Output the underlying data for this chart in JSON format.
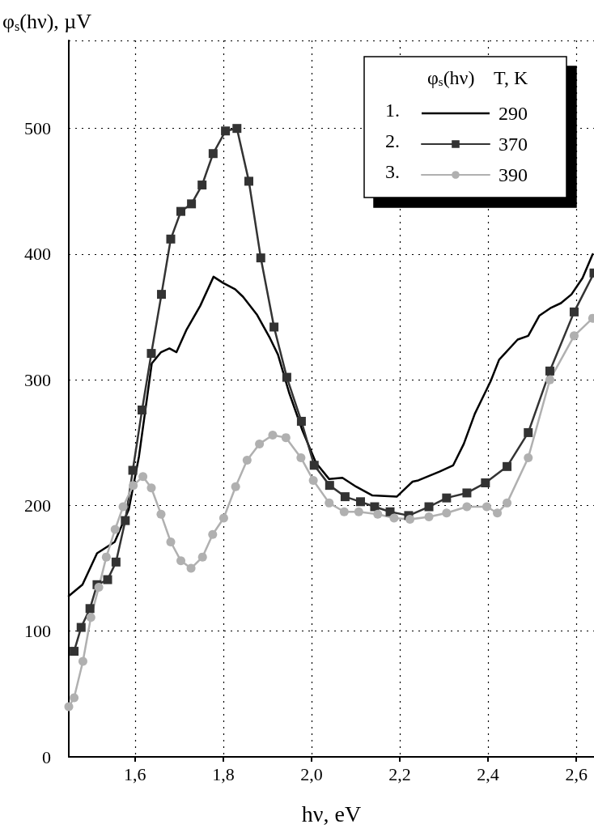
{
  "chart_data": {
    "type": "line",
    "xlabel": "hν, eV",
    "ylabel": "φ$_{s}$(hν), µV",
    "legend_title": "φ$_{s}$(hν)    T, K",
    "annotations": [
      "1.",
      "2.",
      "3."
    ],
    "xlim": [
      1.45,
      2.64
    ],
    "ylim": [
      0,
      570
    ],
    "xticks": [
      {
        "value": 1.6,
        "label": "1,6"
      },
      {
        "value": 1.8,
        "label": "1,8"
      },
      {
        "value": 2.0,
        "label": "2,0"
      },
      {
        "value": 2.2,
        "label": "2,2"
      },
      {
        "value": 2.4,
        "label": "2,4"
      },
      {
        "value": 2.6,
        "label": "2,6"
      }
    ],
    "yticks": [
      0,
      100,
      200,
      300,
      400,
      500
    ],
    "grid": true,
    "legend": "top right",
    "line_style": "solid",
    "series": [
      {
        "name": "290",
        "color": "#000000",
        "marker": "none",
        "x": [
          1.45,
          1.481,
          1.514,
          1.554,
          1.586,
          1.609,
          1.638,
          1.659,
          1.678,
          1.694,
          1.717,
          1.748,
          1.778,
          1.8,
          1.827,
          1.845,
          1.876,
          1.906,
          1.924,
          1.949,
          1.979,
          2.01,
          2.04,
          2.07,
          2.101,
          2.138,
          2.193,
          2.229,
          2.242,
          2.29,
          2.321,
          2.345,
          2.37,
          2.406,
          2.425,
          2.467,
          2.491,
          2.516,
          2.541,
          2.565,
          2.589,
          2.614,
          2.637
        ],
        "values": [
          128,
          137,
          162,
          171,
          197,
          239,
          313,
          322,
          325,
          322,
          340,
          359,
          382,
          377,
          372,
          366,
          352,
          333,
          320,
          290,
          260,
          234,
          221,
          222,
          215,
          208,
          207,
          219,
          220,
          227,
          232,
          249,
          273,
          299,
          316,
          332,
          335,
          351,
          357,
          361,
          368,
          381,
          400
        ]
      },
      {
        "name": "370",
        "color": "#333333",
        "marker": "square",
        "x": [
          1.462,
          1.478,
          1.498,
          1.514,
          1.538,
          1.557,
          1.578,
          1.595,
          1.616,
          1.637,
          1.66,
          1.681,
          1.704,
          1.728,
          1.752,
          1.777,
          1.805,
          1.831,
          1.858,
          1.885,
          1.915,
          1.944,
          1.977,
          2.006,
          2.041,
          2.076,
          2.111,
          2.143,
          2.178,
          2.22,
          2.266,
          2.306,
          2.352,
          2.394,
          2.443,
          2.491,
          2.54,
          2.595,
          2.64
        ],
        "values": [
          84,
          103,
          118,
          137,
          141,
          155,
          188,
          228,
          276,
          321,
          368,
          412,
          434,
          440,
          455,
          480,
          498,
          500,
          458,
          397,
          342,
          302,
          267,
          232,
          216,
          207,
          203,
          199,
          195,
          192,
          199,
          206,
          210,
          218,
          231,
          258,
          307,
          354,
          385
        ]
      },
      {
        "name": "390",
        "color": "#b0b0b0",
        "marker": "circle",
        "x": [
          1.45,
          1.462,
          1.482,
          1.5,
          1.518,
          1.535,
          1.555,
          1.573,
          1.596,
          1.618,
          1.637,
          1.659,
          1.681,
          1.704,
          1.727,
          1.753,
          1.776,
          1.801,
          1.828,
          1.854,
          1.882,
          1.912,
          1.942,
          1.976,
          2.004,
          2.04,
          2.074,
          2.107,
          2.15,
          2.187,
          2.223,
          2.266,
          2.306,
          2.352,
          2.397,
          2.421,
          2.443,
          2.491,
          2.54,
          2.595,
          2.637
        ],
        "values": [
          40,
          47,
          76,
          111,
          135,
          159,
          181,
          199,
          216,
          223,
          214,
          193,
          171,
          156,
          150,
          159,
          177,
          190,
          215,
          236,
          249,
          256,
          254,
          238,
          220,
          202,
          195,
          195,
          193,
          190,
          189,
          191,
          194,
          199,
          199,
          194,
          202,
          238,
          300,
          335,
          349
        ]
      }
    ]
  }
}
